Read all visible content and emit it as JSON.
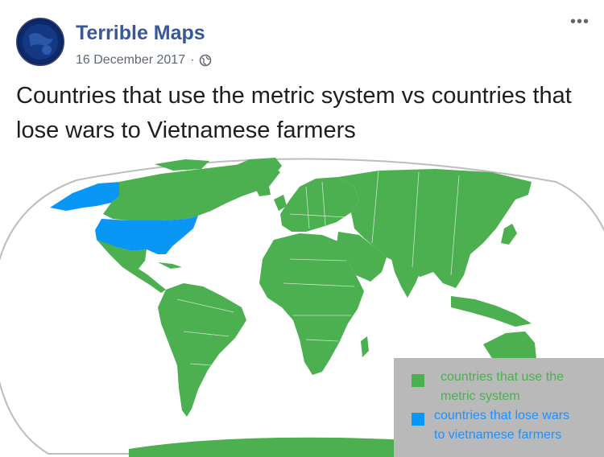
{
  "post": {
    "author": "Terrible Maps",
    "date": "16 December 2017",
    "separator": "·",
    "more_label": "•••",
    "text": "Countries that use the metric system vs countries that lose wars to Vietnamese farmers"
  },
  "map": {
    "legend": {
      "metric_label_line1": "countries that use the",
      "metric_label_line2": "metric system",
      "wars_label_line1": "countries that lose wars",
      "wars_label_line2": "to vietnamese farmers"
    }
  },
  "colors": {
    "metric": "#4caf50",
    "wars": "#0a96f5",
    "ocean": "#ffffff",
    "author_link": "#385898",
    "legend_bg": "#b9b9b9"
  },
  "icons": {
    "visibility": "globe-icon",
    "menu": "more-options-icon"
  }
}
